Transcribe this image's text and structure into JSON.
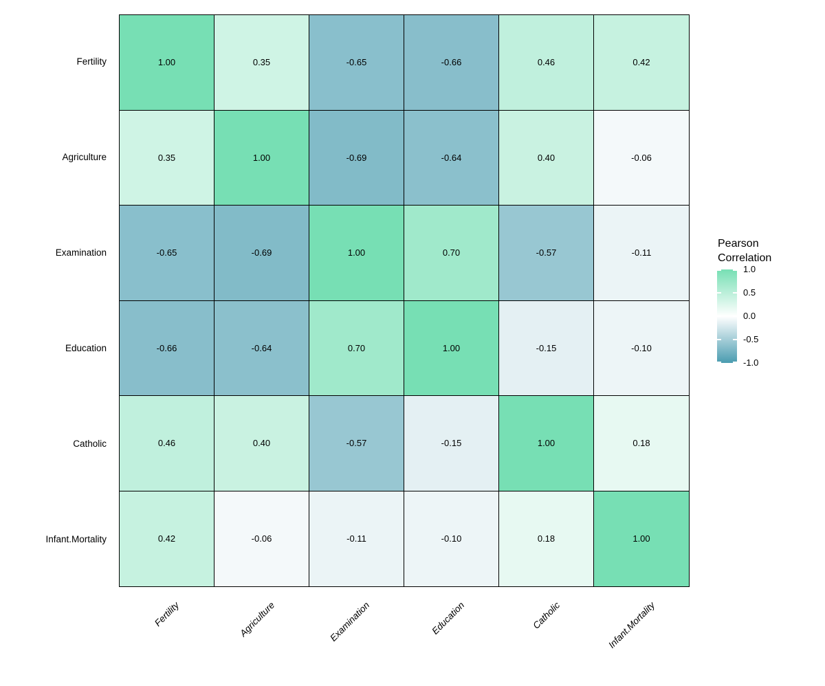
{
  "chart_data": {
    "type": "heatmap",
    "title": "",
    "variables": [
      "Fertility",
      "Agriculture",
      "Examination",
      "Education",
      "Catholic",
      "Infant.Mortality"
    ],
    "matrix": [
      [
        1.0,
        0.35,
        -0.65,
        -0.66,
        0.46,
        0.42
      ],
      [
        0.35,
        1.0,
        -0.69,
        -0.64,
        0.4,
        -0.06
      ],
      [
        -0.65,
        -0.69,
        1.0,
        0.7,
        -0.57,
        -0.11
      ],
      [
        -0.66,
        -0.64,
        0.7,
        1.0,
        -0.15,
        -0.1
      ],
      [
        0.46,
        0.4,
        -0.57,
        -0.15,
        1.0,
        0.18
      ],
      [
        0.42,
        -0.06,
        -0.11,
        -0.1,
        0.18,
        1.0
      ]
    ],
    "value_decimals": 2,
    "legend": {
      "title_lines": [
        "Pearson",
        "Correlation"
      ],
      "tick_labels": [
        "1.0",
        "0.5",
        "0.0",
        "-0.5",
        "-1.0"
      ],
      "tick_values": [
        1.0,
        0.5,
        0.0,
        -0.5,
        -1.0
      ],
      "range": [
        -1.0,
        1.0
      ],
      "position": "right"
    },
    "colors": {
      "high": "#77DFB4",
      "mid": "#FFFFFF",
      "low": "#4A9CB0",
      "grid_line": "#000000",
      "text": "#000000"
    },
    "layout_hints": {
      "x_tick_rotation_deg": 45,
      "x_tick_style": "italic",
      "grid": "on"
    }
  }
}
